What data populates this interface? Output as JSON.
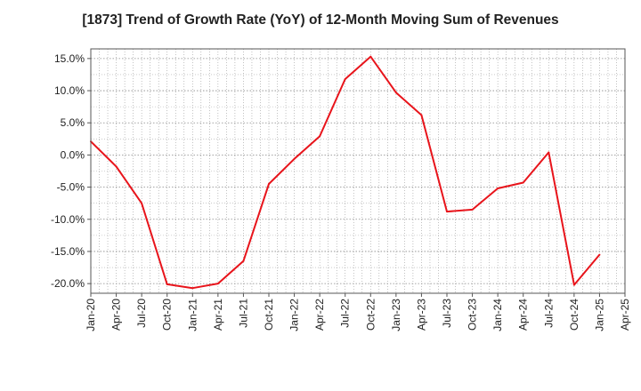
{
  "chart_data": {
    "type": "line",
    "title": "[1873]  Trend of Growth Rate (YoY) of 12-Month Moving Sum of Revenues",
    "xlabel": "",
    "ylabel": "",
    "x_ticks": [
      "Jan-20",
      "Apr-20",
      "Jul-20",
      "Oct-20",
      "Jan-21",
      "Apr-21",
      "Jul-21",
      "Oct-21",
      "Jan-22",
      "Apr-22",
      "Jul-22",
      "Oct-22",
      "Jan-23",
      "Apr-23",
      "Jul-23",
      "Oct-23",
      "Jan-24",
      "Apr-24",
      "Jul-24",
      "Oct-24",
      "Jan-25",
      "Apr-25"
    ],
    "y_ticks": [
      15.0,
      10.0,
      5.0,
      0.0,
      -5.0,
      -10.0,
      -15.0,
      -20.0
    ],
    "y_tick_labels": [
      "15.0%",
      "10.0%",
      "5.0%",
      "0.0%",
      "-5.0%",
      "-10.0%",
      "-15.0%",
      "-20.0%"
    ],
    "ylim": [
      -21.5,
      16.5
    ],
    "grid": true,
    "series": [
      {
        "color": "#e8141b",
        "x": [
          "Jan-20",
          "Apr-20",
          "Jul-20",
          "Oct-20",
          "Jan-21",
          "Apr-21",
          "Jul-21",
          "Oct-21",
          "Jan-22",
          "Apr-22",
          "Jul-22",
          "Oct-22",
          "Jan-23",
          "Apr-23",
          "Jul-23",
          "Oct-23",
          "Jan-24",
          "Apr-24",
          "Jul-24",
          "Oct-24",
          "Jan-25"
        ],
        "values": [
          2.1,
          -1.8,
          -7.5,
          -20.1,
          -20.7,
          -20.0,
          -16.5,
          -4.5,
          -0.6,
          2.9,
          11.8,
          15.3,
          9.7,
          6.2,
          -8.8,
          -8.5,
          -5.2,
          -4.3,
          0.4,
          -20.2,
          -15.5
        ]
      }
    ]
  }
}
